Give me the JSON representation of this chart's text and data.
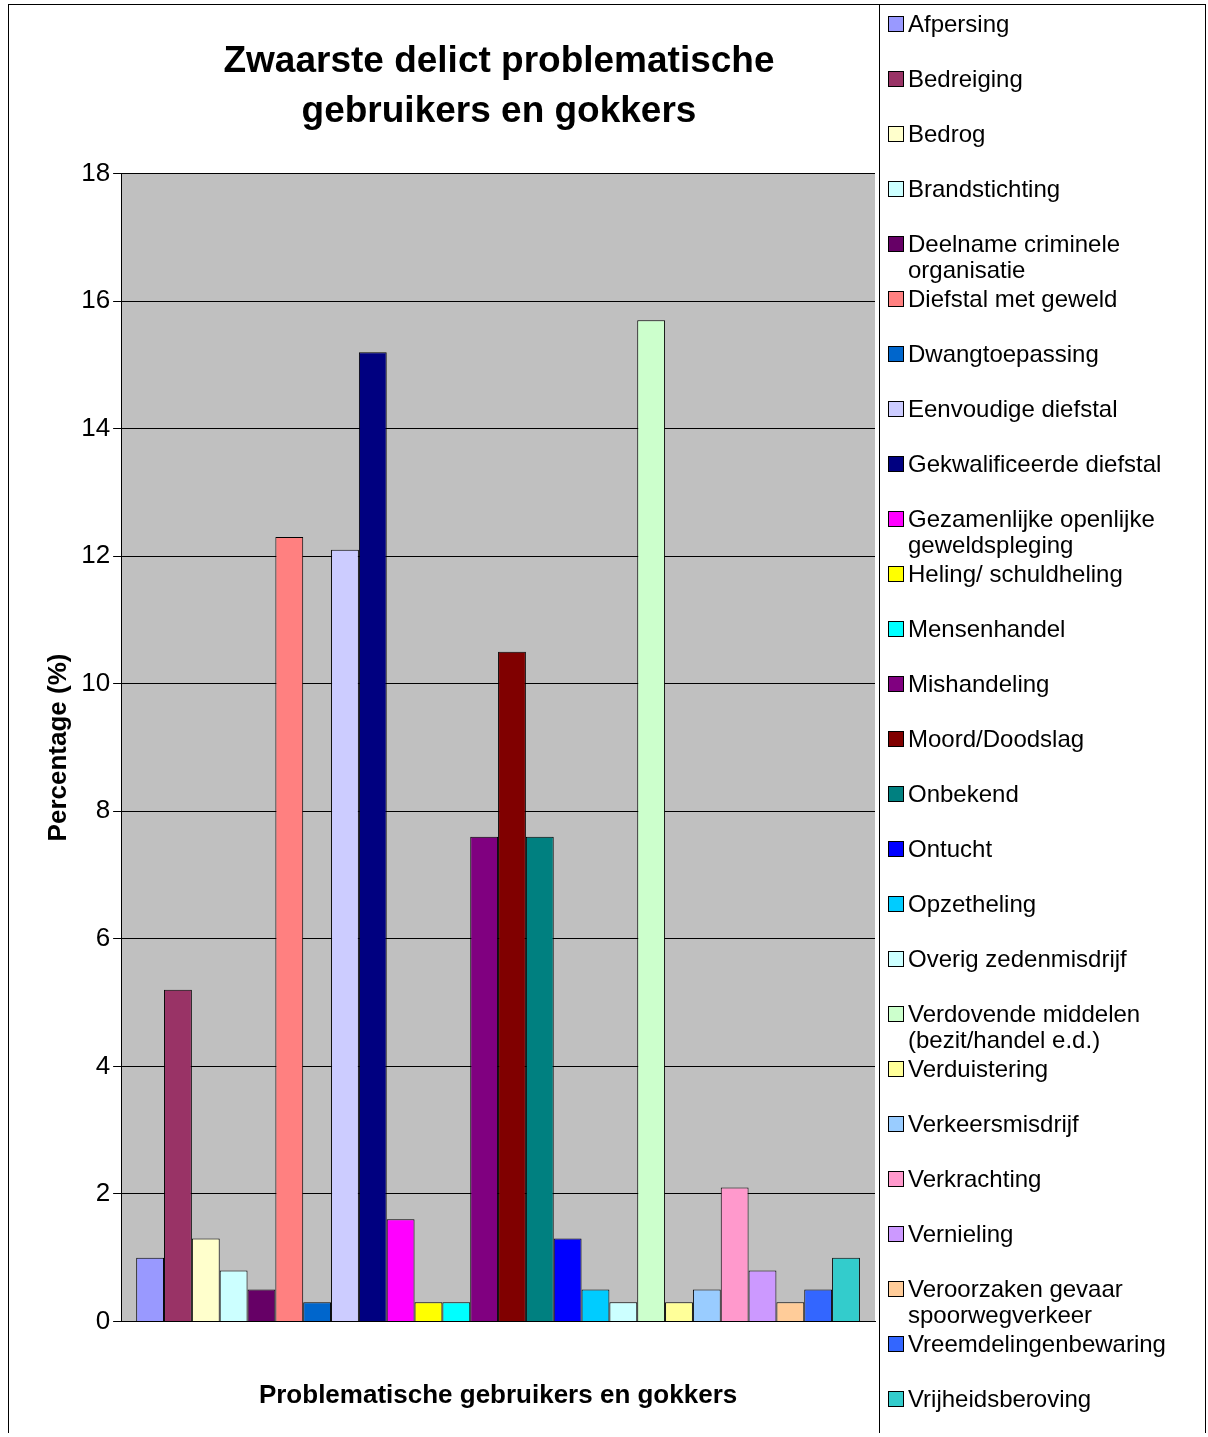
{
  "chart_data": {
    "type": "bar",
    "title": "Zwaarste delict problematische gebruikers en gokkers",
    "xlabel": "Problematische gebruikers en gokkers",
    "ylabel": "Percentage (%)",
    "categories": [
      null
    ],
    "ylim": [
      0,
      18
    ],
    "yticks": [
      0,
      2,
      4,
      6,
      8,
      10,
      12,
      14,
      16,
      18
    ],
    "grid": "y",
    "legend": "right",
    "series": [
      {
        "name": "Afpersing",
        "color": "#9999ff",
        "values": [
          1.0
        ]
      },
      {
        "name": "Bedreiging",
        "color": "#993366",
        "values": [
          5.2
        ]
      },
      {
        "name": "Bedrog",
        "color": "#ffffcc",
        "values": [
          1.3
        ]
      },
      {
        "name": "Brandstichting",
        "color": "#ccffff",
        "values": [
          0.8
        ]
      },
      {
        "name": "Deelname criminele organisatie",
        "color": "#660066",
        "values": [
          0.5
        ]
      },
      {
        "name": "Diefstal met geweld",
        "color": "#ff8080",
        "values": [
          12.3
        ]
      },
      {
        "name": "Dwangtoepassing",
        "color": "#0066cc",
        "values": [
          0.3
        ]
      },
      {
        "name": "Eenvoudige diefstal",
        "color": "#ccccff",
        "values": [
          12.1
        ]
      },
      {
        "name": "Gekwalificeerde diefstal",
        "color": "#000080",
        "values": [
          15.2
        ]
      },
      {
        "name": "Gezamenlijke openlijke geweldspleging",
        "color": "#ff00ff",
        "values": [
          1.6
        ]
      },
      {
        "name": "Heling/ schuldheling",
        "color": "#ffff00",
        "values": [
          0.3
        ]
      },
      {
        "name": "Mensenhandel",
        "color": "#00ffff",
        "values": [
          0.3
        ]
      },
      {
        "name": "Mishandeling",
        "color": "#800080",
        "values": [
          7.6
        ]
      },
      {
        "name": "Moord/Doodslag",
        "color": "#800000",
        "values": [
          10.5
        ]
      },
      {
        "name": "Onbekend",
        "color": "#008080",
        "values": [
          7.6
        ]
      },
      {
        "name": "Ontucht",
        "color": "#0000ff",
        "values": [
          1.3
        ]
      },
      {
        "name": "Opzetheling",
        "color": "#00ccff",
        "values": [
          0.5
        ]
      },
      {
        "name": "Overig zedenmisdrijf",
        "color": "#ccffff",
        "values": [
          0.3
        ]
      },
      {
        "name": "Verdovende middelen (bezit/handel e.d.)",
        "color": "#ccffcc",
        "values": [
          15.7
        ]
      },
      {
        "name": "Verduistering",
        "color": "#ffff99",
        "values": [
          0.3
        ]
      },
      {
        "name": "Verkeersmisdrijf",
        "color": "#99ccff",
        "values": [
          0.5
        ]
      },
      {
        "name": "Verkrachting",
        "color": "#ff99cc",
        "values": [
          2.1
        ]
      },
      {
        "name": "Vernieling",
        "color": "#cc99ff",
        "values": [
          0.8
        ]
      },
      {
        "name": "Veroorzaken gevaar spoorwegverkeer",
        "color": "#ffcc99",
        "values": [
          0.3
        ]
      },
      {
        "name": "Vreemdelingenbewaring",
        "color": "#3366ff",
        "values": [
          0.5
        ]
      },
      {
        "name": "Vrijheidsberoving",
        "color": "#33cccc",
        "values": [
          1.0
        ]
      }
    ]
  }
}
